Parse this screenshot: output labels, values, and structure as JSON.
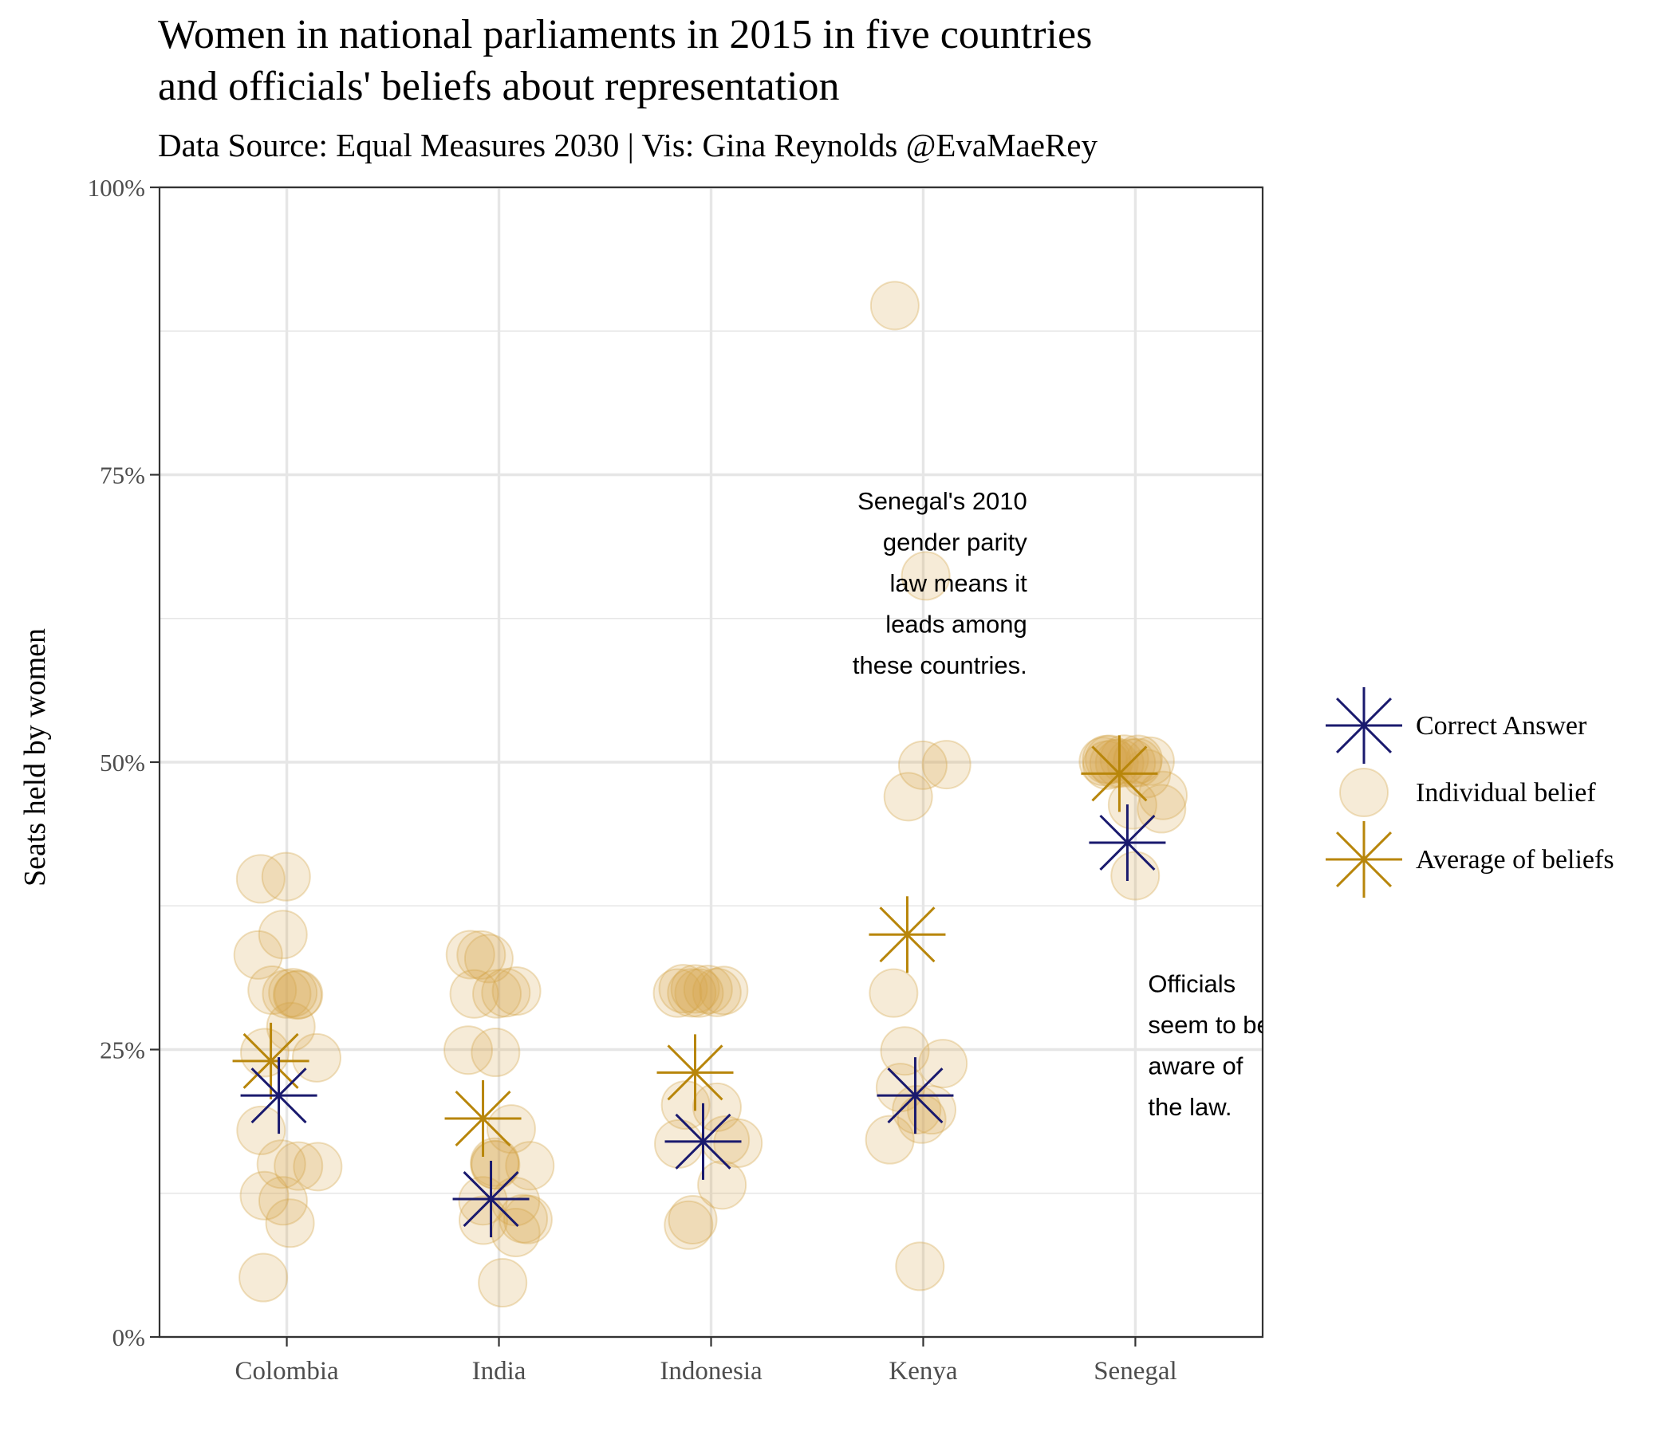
{
  "title_lines": [
    "Women in national parliaments in 2015 in five countries",
    "and officials' beliefs about representation"
  ],
  "subtitle": "Data Source: Equal Measures 2030 | Vis: Gina Reynolds @EvaMaeRey",
  "colors": {
    "correct": "#1a1a6e",
    "belief": "#d4a64a",
    "average": "#b8860b",
    "grid": "#e6e6e6",
    "axis": "#333333",
    "tick_text": "#4d4d4d"
  },
  "chart_data": {
    "type": "scatter",
    "ylabel": "Seats held by women",
    "ylim": [
      0,
      1
    ],
    "y_ticks": [
      {
        "value": 0,
        "label": "0%"
      },
      {
        "value": 0.25,
        "label": "25%"
      },
      {
        "value": 0.5,
        "label": "50%"
      },
      {
        "value": 0.75,
        "label": "75%"
      },
      {
        "value": 1,
        "label": "100%"
      }
    ],
    "categories": [
      "Colombia",
      "India",
      "Indonesia",
      "Kenya",
      "Senegal"
    ],
    "grid": true,
    "legend_position": "right",
    "legend": [
      {
        "key": "correct",
        "label": "Correct Answer"
      },
      {
        "key": "belief",
        "label": "Individual belief"
      },
      {
        "key": "average",
        "label": "Average of beliefs"
      }
    ],
    "individual_beliefs": {
      "Colombia": [
        0.4,
        0.4,
        0.35,
        0.33,
        0.3,
        0.3,
        0.3,
        0.3,
        0.3,
        0.27,
        0.25,
        0.24,
        0.18,
        0.15,
        0.15,
        0.15,
        0.12,
        0.12,
        0.1,
        0.05
      ],
      "India": [
        0.33,
        0.33,
        0.33,
        0.3,
        0.3,
        0.3,
        0.3,
        0.25,
        0.25,
        0.18,
        0.15,
        0.15,
        0.15,
        0.15,
        0.12,
        0.12,
        0.1,
        0.1,
        0.1,
        0.09,
        0.05
      ],
      "Indonesia": [
        0.3,
        0.3,
        0.3,
        0.3,
        0.3,
        0.3,
        0.3,
        0.3,
        0.2,
        0.2,
        0.17,
        0.17,
        0.17,
        0.13,
        0.1,
        0.1
      ],
      "Kenya": [
        0.9,
        0.66,
        0.5,
        0.5,
        0.47,
        0.3,
        0.25,
        0.24,
        0.22,
        0.2,
        0.2,
        0.19,
        0.17,
        0.06
      ],
      "Senegal": [
        0.5,
        0.5,
        0.5,
        0.5,
        0.5,
        0.5,
        0.5,
        0.5,
        0.5,
        0.5,
        0.5,
        0.49,
        0.47,
        0.46,
        0.46,
        0.4
      ]
    },
    "correct_answer": {
      "Colombia": 0.21,
      "India": 0.12,
      "Indonesia": 0.17,
      "Kenya": 0.21,
      "Senegal": 0.43
    },
    "average_of_beliefs": {
      "Colombia": 0.24,
      "India": 0.19,
      "Indonesia": 0.23,
      "Kenya": 0.35,
      "Senegal": 0.49
    },
    "annotations": [
      {
        "name": "annotation-senegal-law",
        "category": "Kenya",
        "value": 0.72,
        "align": "end",
        "lines": [
          "Senegal's 2010",
          "gender parity",
          "law means it",
          "leads among",
          "these countries."
        ]
      },
      {
        "name": "annotation-officials-aware",
        "category": "Senegal",
        "value": 0.3,
        "align": "start",
        "lines": [
          "Officials",
          "seem to be",
          "aware of",
          "the law."
        ]
      }
    ]
  }
}
